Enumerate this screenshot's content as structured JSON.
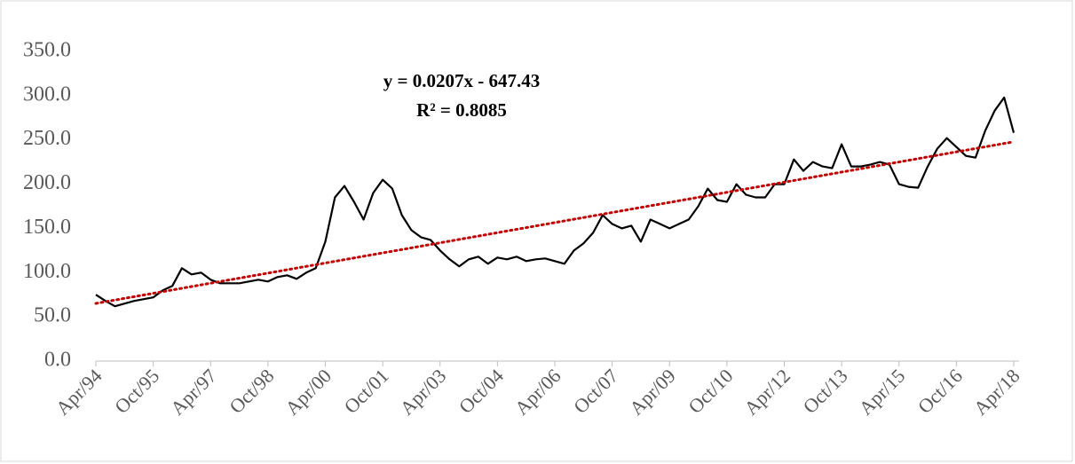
{
  "chart_data": {
    "type": "line",
    "annotations": [
      "y = 0.0207x - 647.43",
      "R² = 0.8085"
    ],
    "x": [
      "Apr/94",
      "Jul/94",
      "Oct/94",
      "Jan/95",
      "Apr/95",
      "Jul/95",
      "Oct/95",
      "Jan/96",
      "Apr/96",
      "Jul/96",
      "Oct/96",
      "Jan/97",
      "Apr/97",
      "Jul/97",
      "Oct/97",
      "Jan/98",
      "Apr/98",
      "Jul/98",
      "Oct/98",
      "Jan/99",
      "Apr/99",
      "Jul/99",
      "Oct/99",
      "Jan/00",
      "Apr/00",
      "Jul/00",
      "Oct/00",
      "Jan/01",
      "Apr/01",
      "Jul/01",
      "Oct/01",
      "Jan/02",
      "Apr/02",
      "Jul/02",
      "Oct/02",
      "Jan/03",
      "Apr/03",
      "Jul/03",
      "Oct/03",
      "Jan/04",
      "Apr/04",
      "Jul/04",
      "Oct/04",
      "Jan/05",
      "Apr/05",
      "Jul/05",
      "Oct/05",
      "Jan/06",
      "Apr/06",
      "Jul/06",
      "Oct/06",
      "Jan/07",
      "Apr/07",
      "Jul/07",
      "Oct/07",
      "Jan/08",
      "Apr/08",
      "Jul/08",
      "Oct/08",
      "Jan/09",
      "Apr/09",
      "Jul/09",
      "Oct/09",
      "Jan/10",
      "Apr/10",
      "Jul/10",
      "Oct/10",
      "Jan/11",
      "Apr/11",
      "Jul/11",
      "Oct/11",
      "Jan/12",
      "Apr/12",
      "Jul/12",
      "Oct/12",
      "Jan/13",
      "Apr/13",
      "Jul/13",
      "Oct/13",
      "Jan/14",
      "Apr/14",
      "Jul/14",
      "Oct/14",
      "Jan/15",
      "Apr/15",
      "Jul/15",
      "Oct/15",
      "Jan/16",
      "Apr/16",
      "Jul/16",
      "Oct/16",
      "Jan/17",
      "Apr/17",
      "Jul/17",
      "Oct/17",
      "Jan/18",
      "Apr/18"
    ],
    "series": [
      {
        "color": "#000000",
        "values": [
          75,
          68,
          62,
          65,
          68,
          70,
          72,
          80,
          85,
          105,
          98,
          100,
          92,
          88,
          88,
          88,
          90,
          92,
          90,
          95,
          97,
          93,
          100,
          105,
          135,
          185,
          198,
          180,
          160,
          190,
          205,
          195,
          165,
          148,
          140,
          137,
          125,
          115,
          107,
          115,
          118,
          110,
          117,
          115,
          118,
          113,
          115,
          116,
          113,
          110,
          125,
          133,
          145,
          165,
          155,
          150,
          153,
          135,
          160,
          155,
          150,
          155,
          160,
          175,
          195,
          182,
          180,
          200,
          188,
          185,
          185,
          200,
          200,
          228,
          215,
          225,
          220,
          218,
          245,
          220,
          220,
          222,
          225,
          222,
          200,
          197,
          196,
          220,
          240,
          252,
          242,
          232,
          230,
          260,
          283,
          298,
          258
        ]
      }
    ],
    "trendline": {
      "color": "#c00000",
      "x": [
        "Apr/94",
        "Apr/18"
      ],
      "values": [
        65.2,
        247.9
      ]
    },
    "xticks": [
      "Apr/94",
      "Oct/95",
      "Apr/97",
      "Oct/98",
      "Apr/00",
      "Oct/01",
      "Apr/03",
      "Oct/04",
      "Apr/06",
      "Oct/07",
      "Apr/09",
      "Oct/10",
      "Apr/12",
      "Oct/13",
      "Apr/15",
      "Oct/16",
      "Apr/18"
    ],
    "ylim": [
      0,
      350
    ],
    "yticks": [
      {
        "value": 0,
        "label": "0.0"
      },
      {
        "value": 50,
        "label": "50.0"
      },
      {
        "value": 100,
        "label": "100.0"
      },
      {
        "value": 150,
        "label": "150.0"
      },
      {
        "value": 200,
        "label": "200.0"
      },
      {
        "value": 250,
        "label": "250.0"
      },
      {
        "value": 300,
        "label": "300.0"
      },
      {
        "value": 350,
        "label": "350.0"
      }
    ]
  }
}
